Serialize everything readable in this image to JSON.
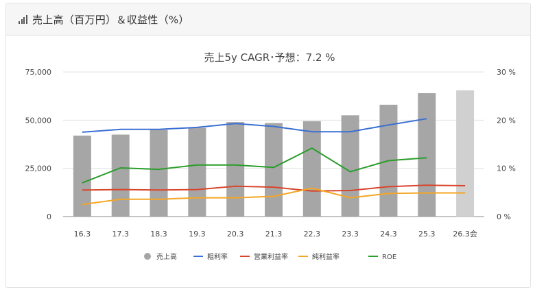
{
  "header": {
    "title": "売上高（百万円）＆収益性（%）",
    "icon": "signal-bars-icon"
  },
  "chart_data": {
    "type": "bar",
    "title": "売上5y CAGR･予想：7.2 %",
    "categories": [
      "16.3",
      "17.3",
      "18.3",
      "19.3",
      "20.3",
      "21.3",
      "22.3",
      "23.3",
      "24.3",
      "25.3",
      "26.3会"
    ],
    "left_axis": {
      "ylim": [
        0,
        75000
      ],
      "ticks": [
        "0",
        "25,000",
        "50,000",
        "75,000"
      ]
    },
    "right_axis": {
      "ylim": [
        0,
        30
      ],
      "ticks": [
        "0 %",
        "10 %",
        "20 %",
        "30 %"
      ]
    },
    "grid": true,
    "legend_position": "bottom",
    "series": [
      {
        "name": "売上高",
        "kind": "bar",
        "axis": "left",
        "color": "#a6a6a6",
        "forecast_color": "#d0d0d0",
        "values": [
          42000,
          42500,
          45000,
          46000,
          49000,
          48500,
          49500,
          52500,
          58000,
          64000,
          65500
        ]
      },
      {
        "name": "粗利率",
        "kind": "line",
        "axis": "right",
        "color": "#3b6fd4",
        "values": [
          17.5,
          18.1,
          18.1,
          18.5,
          19.3,
          18.7,
          17.6,
          17.6,
          19.0,
          20.3,
          null
        ]
      },
      {
        "name": "営業利益率",
        "kind": "line",
        "axis": "right",
        "color": "#d9452b",
        "values": [
          5.5,
          5.6,
          5.5,
          5.6,
          6.3,
          6.1,
          5.3,
          5.4,
          6.2,
          6.5,
          6.4
        ]
      },
      {
        "name": "純利益率",
        "kind": "line",
        "axis": "right",
        "color": "#f5a623",
        "values": [
          2.5,
          3.6,
          3.6,
          3.9,
          3.9,
          4.2,
          5.9,
          3.9,
          4.8,
          4.9,
          4.9
        ]
      },
      {
        "name": "ROE",
        "kind": "line",
        "axis": "right",
        "color": "#2a9d2a",
        "values": [
          7.0,
          10.1,
          9.8,
          10.7,
          10.7,
          10.2,
          14.2,
          9.3,
          11.6,
          12.2,
          null
        ]
      }
    ]
  }
}
